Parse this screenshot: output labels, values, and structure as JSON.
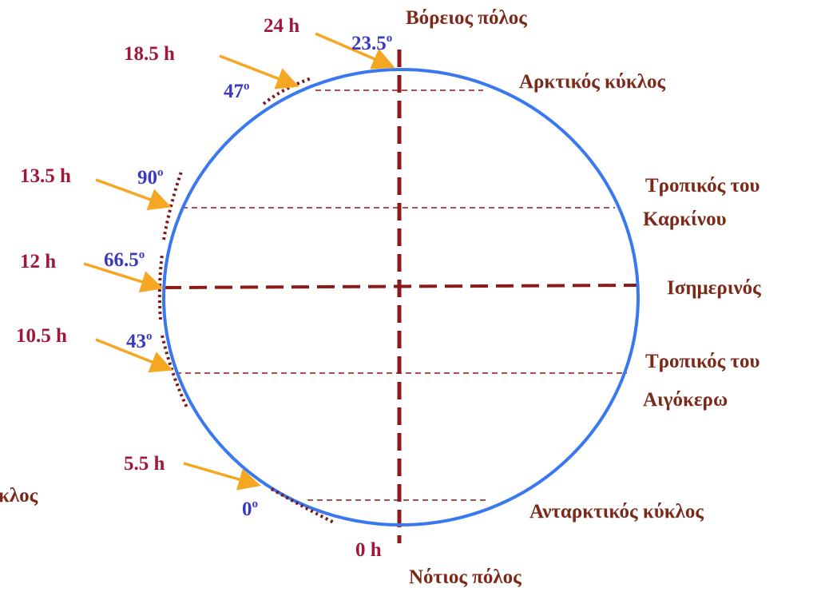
{
  "labels": {
    "north_pole": "Βόρειος πόλος",
    "arctic": "Αρκτικός κύκλος",
    "tropic_cancer": [
      "Τροπικός του",
      "Καρκίνου"
    ],
    "equator": "Ισημερινός",
    "tropic_capricorn": [
      "Τροπικός του",
      "Αιγόκερω"
    ],
    "antarctic": "Ανταρκτικός κύκλος",
    "south_pole": "Νότιος πόλος",
    "cut_off": "κλος"
  },
  "hours": [
    "24 h",
    "18.5 h",
    "13.5 h",
    "12 h",
    "10.5 h",
    "5.5 h",
    "0 h"
  ],
  "angles": [
    {
      "value": "23.5",
      "sup": "o"
    },
    {
      "value": "47",
      "sup": "o"
    },
    {
      "value": "90",
      "sup": "o"
    },
    {
      "value": "66.5",
      "sup": "o"
    },
    {
      "value": "43",
      "sup": "o"
    },
    {
      "value": "0",
      "sup": "o"
    }
  ]
}
